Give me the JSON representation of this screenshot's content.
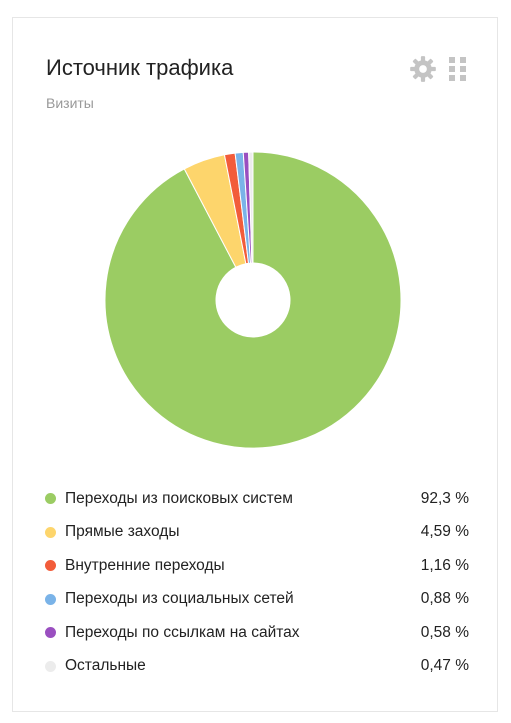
{
  "widget": {
    "title": "Источник трафика",
    "subtitle": "Визиты",
    "settings_icon": "gear-icon",
    "drag_icon": "drag-handle-icon"
  },
  "chart_data": {
    "type": "pie",
    "donut": true,
    "start": "top",
    "direction": "clockwise",
    "legend_position": "bottom",
    "series": [
      {
        "name": "Переходы из поисковых систем",
        "value": 92.3,
        "label": "92,3 %",
        "color": "#9bcc63"
      },
      {
        "name": "Прямые заходы",
        "value": 4.59,
        "label": "4,59 %",
        "color": "#fdd56c"
      },
      {
        "name": "Внутренние переходы",
        "value": 1.16,
        "label": "1,16 %",
        "color": "#f25c3a"
      },
      {
        "name": "Переходы из социальных сетей",
        "value": 0.88,
        "label": "0,88 %",
        "color": "#7ab3e8"
      },
      {
        "name": "Переходы по ссылкам на сайтах",
        "value": 0.58,
        "label": "0,58 %",
        "color": "#9a4fc0"
      },
      {
        "name": "Остальные",
        "value": 0.47,
        "label": "0,47 %",
        "color": "#ececec"
      }
    ]
  }
}
